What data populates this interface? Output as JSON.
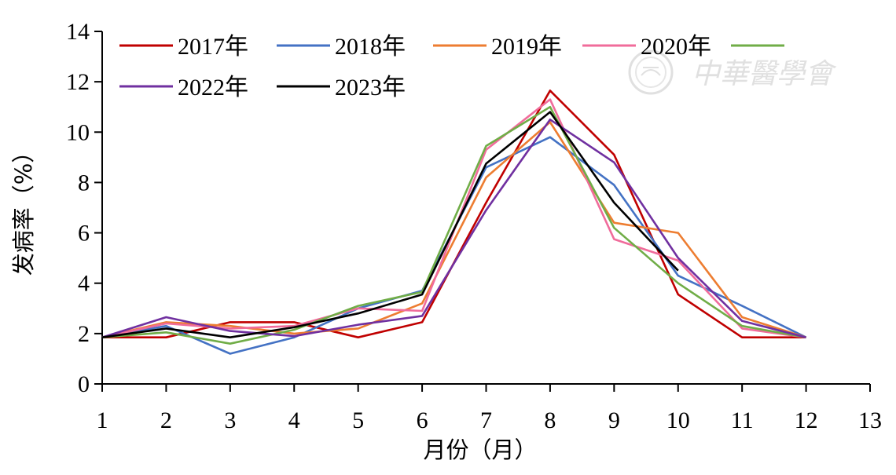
{
  "watermark": {
    "text": "中華醫學會"
  },
  "chart_data": {
    "type": "line",
    "title": "",
    "xlabel": "月份（月）",
    "ylabel": "发病率（%）",
    "xlim": [
      1,
      13
    ],
    "ylim": [
      0,
      14
    ],
    "xticks": [
      "1",
      "2",
      "3",
      "4",
      "5",
      "6",
      "7",
      "8",
      "9",
      "10",
      "11",
      "12",
      "13"
    ],
    "yticks": [
      "0",
      "2",
      "4",
      "6",
      "8",
      "10",
      "12",
      "14"
    ],
    "grid": false,
    "legend_position": "top-left",
    "x": [
      1,
      2,
      3,
      4,
      5,
      6,
      7,
      8,
      9,
      10,
      11,
      12
    ],
    "series": [
      {
        "name": "2017年",
        "color": "#c00000",
        "values": [
          1.85,
          1.85,
          2.45,
          2.45,
          1.85,
          2.45,
          7.2,
          11.65,
          9.1,
          3.55,
          1.85,
          1.85
        ]
      },
      {
        "name": "2018年",
        "color": "#4472c4",
        "values": [
          1.85,
          2.3,
          1.2,
          1.85,
          3.0,
          3.7,
          8.6,
          9.8,
          7.9,
          4.3,
          3.1,
          1.85
        ]
      },
      {
        "name": "2019年",
        "color": "#ed7d31",
        "values": [
          1.85,
          2.45,
          2.3,
          2.0,
          2.2,
          3.2,
          8.2,
          10.4,
          6.4,
          6.0,
          2.65,
          1.85
        ]
      },
      {
        "name": "2020年",
        "color": "#f06c9b",
        "values": [
          1.85,
          2.4,
          2.2,
          2.3,
          3.0,
          2.9,
          9.3,
          11.3,
          5.75,
          4.9,
          2.2,
          1.85
        ]
      },
      {
        "name": "",
        "color": "#70ad47",
        "values": [
          1.85,
          2.05,
          1.6,
          2.15,
          3.1,
          3.65,
          9.45,
          11.0,
          6.2,
          4.0,
          2.3,
          1.85
        ]
      },
      {
        "name": "2022年",
        "color": "#7030a0",
        "values": [
          1.85,
          2.65,
          2.1,
          1.9,
          2.35,
          2.7,
          6.9,
          10.5,
          8.8,
          5.0,
          2.5,
          1.85
        ]
      },
      {
        "name": "2023年",
        "color": "#000000",
        "values": [
          1.85,
          2.2,
          1.85,
          2.25,
          2.8,
          3.55,
          8.75,
          10.8,
          7.2,
          4.5,
          null,
          null
        ]
      }
    ]
  }
}
